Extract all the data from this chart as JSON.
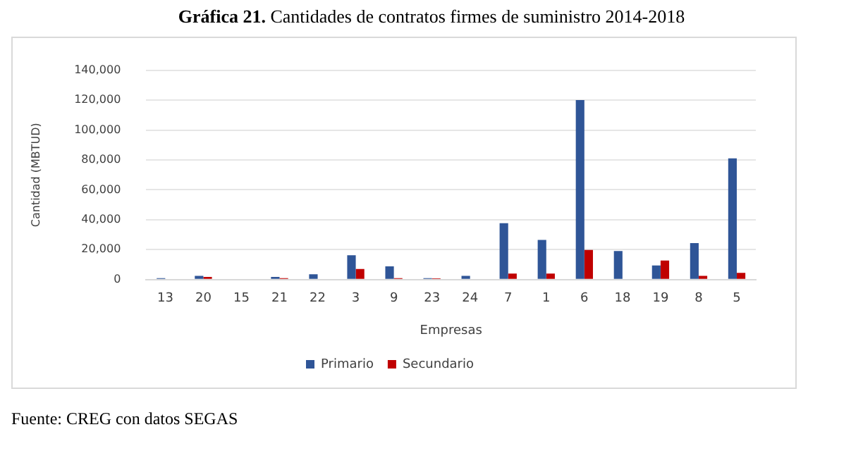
{
  "chart_data": {
    "type": "bar",
    "title": "Gráfica 21. Cantidades de contratos firmes de suministro 2014-2018",
    "xlabel": "Empresas",
    "ylabel": "Cantidad (MBTUD)",
    "categories": [
      "13",
      "20",
      "15",
      "21",
      "22",
      "3",
      "9",
      "23",
      "24",
      "7",
      "1",
      "6",
      "18",
      "19",
      "8",
      "5"
    ],
    "series": [
      {
        "name": "Primario",
        "color": "#2f5597",
        "values": [
          1000,
          2500,
          0,
          1800,
          3500,
          16300,
          8900,
          1000,
          2500,
          37700,
          26500,
          120000,
          19100,
          9400,
          24400,
          81000
        ]
      },
      {
        "name": "Secundario",
        "color": "#c00000",
        "values": [
          0,
          1800,
          0,
          1000,
          0,
          7100,
          1000,
          800,
          0,
          4000,
          4000,
          19800,
          0,
          12700,
          2500,
          4500
        ]
      }
    ],
    "ylim": [
      0,
      140000
    ],
    "yticks": [
      {
        "value": 0,
        "label": "0"
      },
      {
        "value": 20000,
        "label": "20,000"
      },
      {
        "value": 40000,
        "label": "40,000"
      },
      {
        "value": 60000,
        "label": "60,000"
      },
      {
        "value": 80000,
        "label": "80,000"
      },
      {
        "value": 100000,
        "label": "100,000"
      },
      {
        "value": 120000,
        "label": "120,000"
      },
      {
        "value": 140000,
        "label": "140,000"
      }
    ],
    "grid": "y",
    "legend": "bottom",
    "annotations": [
      "Fuente: CREG con datos SEGAS"
    ]
  }
}
